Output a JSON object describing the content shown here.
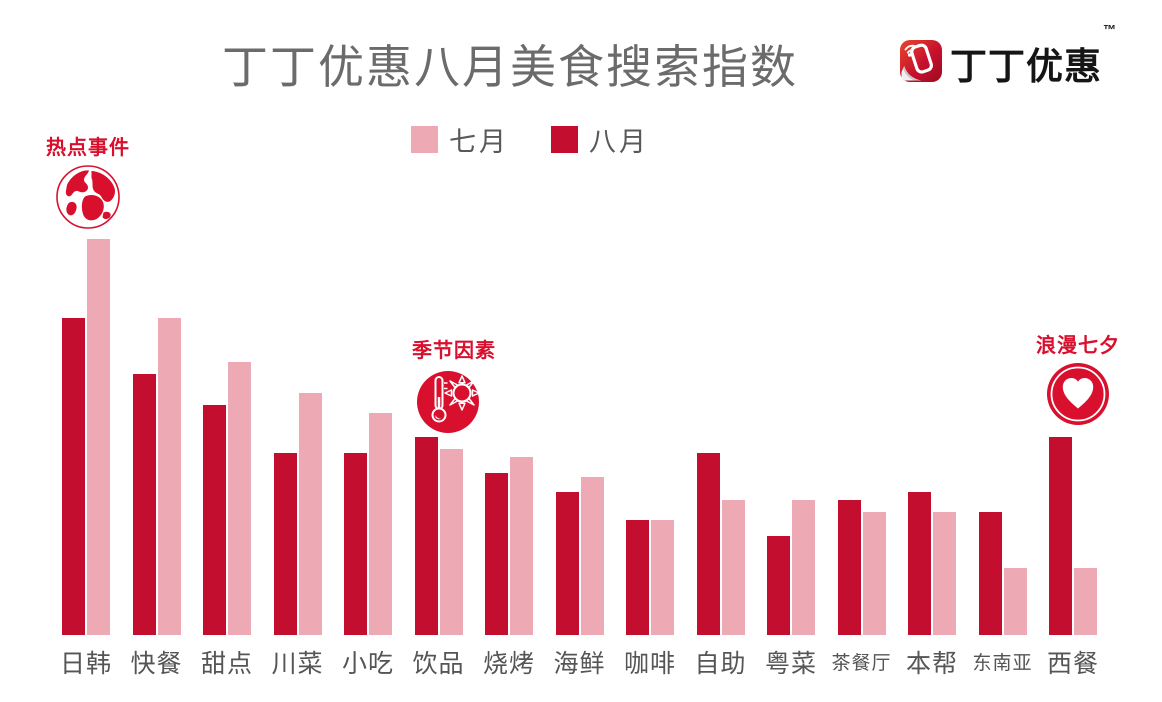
{
  "title": "丁丁优惠八月美食搜索指数",
  "logo": {
    "icon": "dingding-app-icon",
    "text": "丁丁优惠",
    "tm": "™",
    "brand_red": "#c8102e"
  },
  "legend": {
    "items": [
      {
        "label": "七月",
        "color": "#edaab4"
      },
      {
        "label": "八月",
        "color": "#c40e2f"
      }
    ]
  },
  "annotations": [
    {
      "label": "热点事件",
      "icon": "globe-icon",
      "category": "日韩"
    },
    {
      "label": "季节因素",
      "icon": "thermometer-sun-icon",
      "category": "饮品"
    },
    {
      "label": "浪漫七夕",
      "icon": "heart-icon",
      "category": "西餐"
    }
  ],
  "colors": {
    "august_red": "#c40e2f",
    "july_pink": "#edaab4",
    "annotation_red": "#d8102e",
    "title_gray": "#6b6b6b",
    "axis_text_gray": "#555555"
  },
  "chart_data": {
    "type": "bar",
    "title": "丁丁优惠八月美食搜索指数",
    "categories": [
      "日韩",
      "快餐",
      "甜点",
      "川菜",
      "小吃",
      "饮品",
      "烧烤",
      "海鲜",
      "咖啡",
      "自助",
      "粤菜",
      "茶餐厅",
      "本帮",
      "东南亚",
      "西餐"
    ],
    "series": [
      {
        "name": "七月",
        "color": "#edaab4",
        "values": [
          100,
          80,
          69,
          61,
          56,
          47,
          45,
          40,
          29,
          34,
          34,
          31,
          31,
          17,
          17
        ]
      },
      {
        "name": "八月",
        "color": "#c40e2f",
        "values": [
          80,
          66,
          58,
          46,
          46,
          50,
          41,
          36,
          29,
          46,
          25,
          34,
          36,
          31,
          50
        ]
      }
    ],
    "xlabel": "",
    "ylabel": "",
    "ylim": [
      0,
      100
    ],
    "grid": false,
    "y_axis_shown": false,
    "legend_position": "top-center",
    "bar_order_in_pair": [
      "八月",
      "七月"
    ]
  }
}
